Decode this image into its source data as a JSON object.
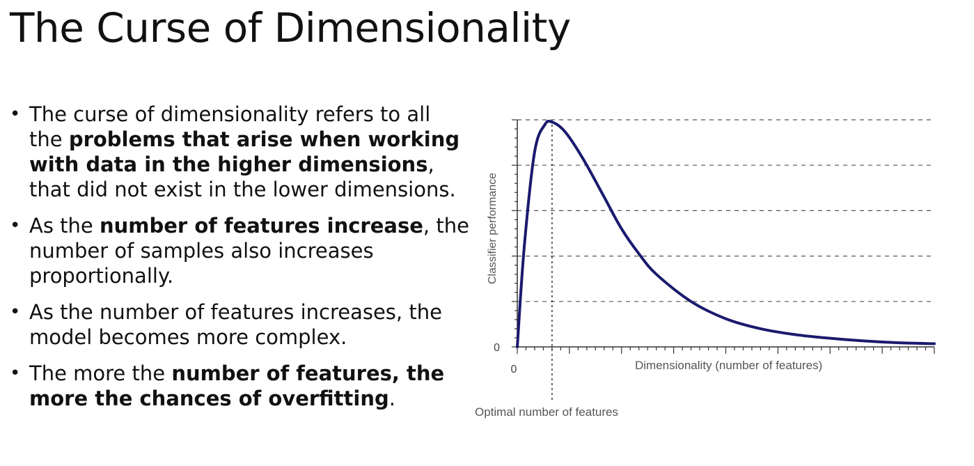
{
  "slide": {
    "title": "The Curse of Dimensionality"
  },
  "bullets": [
    {
      "parts": [
        {
          "text": "The curse of dimensionality refers to all the ",
          "bold": false
        },
        {
          "text": "problems that arise when working with data in the higher dimensions",
          "bold": true
        },
        {
          "text": ", that did not exist in the lower dimensions.",
          "bold": false
        }
      ]
    },
    {
      "parts": [
        {
          "text": "As the ",
          "bold": false
        },
        {
          "text": "number of features increase",
          "bold": true
        },
        {
          "text": ", the number of samples also increases proportionally.",
          "bold": false
        }
      ]
    },
    {
      "parts": [
        {
          "text": "As the number of features increases, the model becomes more complex.",
          "bold": false
        }
      ]
    },
    {
      "parts": [
        {
          "text": "The more the ",
          "bold": false
        },
        {
          "text": "number of features, the more the chances of overfitting",
          "bold": true
        },
        {
          "text": ".",
          "bold": false
        }
      ]
    }
  ],
  "chart_data": {
    "type": "line",
    "xlabel": "Dimensionality (number of features)",
    "ylabel": "Classifier performance",
    "x_tick_labels": [
      "0"
    ],
    "y_tick_labels": [
      "0"
    ],
    "annotation": "Optimal number of features",
    "grid": "horizontal dashed",
    "series": [
      {
        "color": "#1a1a6e",
        "x": [
          0,
          0.2,
          0.5,
          0.8,
          1.0,
          1.3,
          1.6,
          2.0,
          2.5,
          3.0,
          3.5,
          4.0,
          5.0,
          6.0,
          7.0,
          8.0,
          9.0,
          10.0,
          11.0,
          12.0
        ],
        "y": [
          0,
          2.2,
          4.3,
          4.9,
          4.95,
          4.8,
          4.5,
          4.0,
          3.3,
          2.6,
          2.05,
          1.6,
          1.0,
          0.62,
          0.4,
          0.27,
          0.19,
          0.13,
          0.09,
          0.07
        ]
      }
    ],
    "xlim": [
      0,
      12
    ],
    "ylim": [
      0,
      5
    ],
    "optimal_x": 1.0
  },
  "colors": {
    "curve": "#1a1a6e",
    "axis": "#333333",
    "grid": "#555555"
  }
}
